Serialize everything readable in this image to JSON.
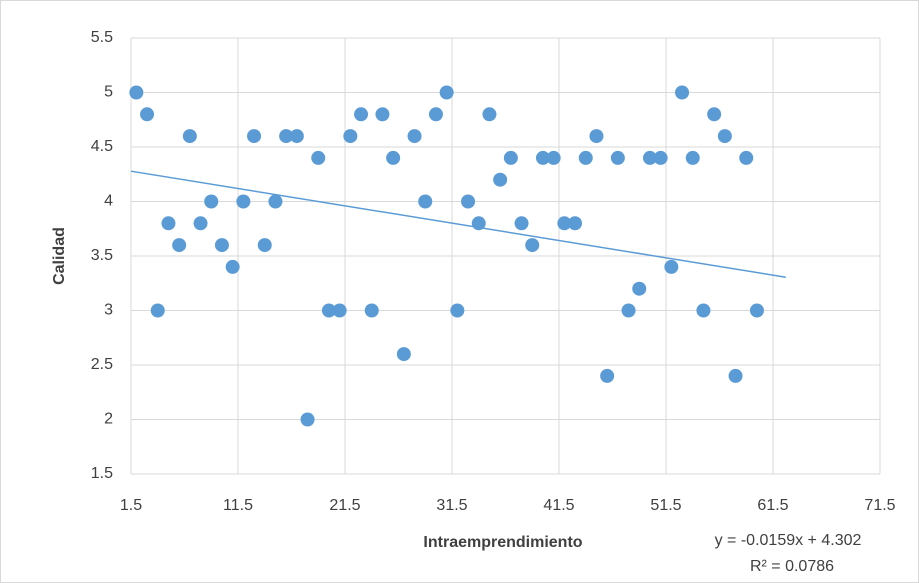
{
  "chart_data": {
    "type": "scatter",
    "xlabel": "Intraemprendimiento",
    "ylabel": "Calidad",
    "x": [
      2,
      3,
      4,
      5,
      6,
      7,
      8,
      9,
      10,
      11,
      12,
      13,
      14,
      15,
      16,
      17,
      18,
      19,
      20,
      21,
      22,
      23,
      24,
      25,
      26,
      27,
      28,
      29,
      30,
      31,
      32,
      33,
      34,
      35,
      36,
      37,
      38,
      39,
      40,
      41,
      42,
      43,
      44,
      45,
      46,
      47,
      48,
      49,
      50,
      51,
      52,
      53,
      54,
      55,
      56,
      57,
      58,
      59,
      60
    ],
    "series": [
      {
        "name": "Calidad",
        "color": "#5b9bd5",
        "values": [
          5.0,
          4.8,
          3.0,
          3.8,
          3.6,
          4.6,
          3.8,
          4.0,
          3.6,
          3.4,
          4.0,
          4.6,
          3.6,
          4.0,
          4.6,
          4.6,
          2.0,
          4.4,
          3.0,
          3.0,
          4.6,
          4.8,
          3.0,
          4.8,
          4.4,
          2.6,
          4.6,
          4.0,
          4.8,
          5.0,
          3.0,
          4.0,
          3.8,
          4.8,
          4.2,
          4.4,
          3.8,
          3.6,
          4.4,
          4.4,
          3.8,
          3.8,
          4.4,
          4.6,
          2.4,
          4.4,
          3.0,
          3.2,
          4.4,
          4.4,
          3.4,
          5.0,
          4.4,
          3.0,
          4.8,
          4.6,
          2.4,
          4.4,
          3.0
        ]
      }
    ],
    "trendline": {
      "slope": -0.0159,
      "intercept": 4.302,
      "x_range": [
        1.5,
        62.7
      ],
      "color": "#5b9bd5",
      "equation": "y = -0.0159x + 4.302",
      "r2_label": "R² = 0.0786"
    },
    "xlim": [
      1.5,
      71.5
    ],
    "xticks": [
      1.5,
      11.5,
      21.5,
      31.5,
      41.5,
      51.5,
      61.5,
      71.5
    ],
    "ylim": [
      1.5,
      5.5
    ],
    "yticks": [
      1.5,
      2,
      2.5,
      3,
      3.5,
      4,
      4.5,
      5,
      5.5
    ],
    "grid": true
  }
}
